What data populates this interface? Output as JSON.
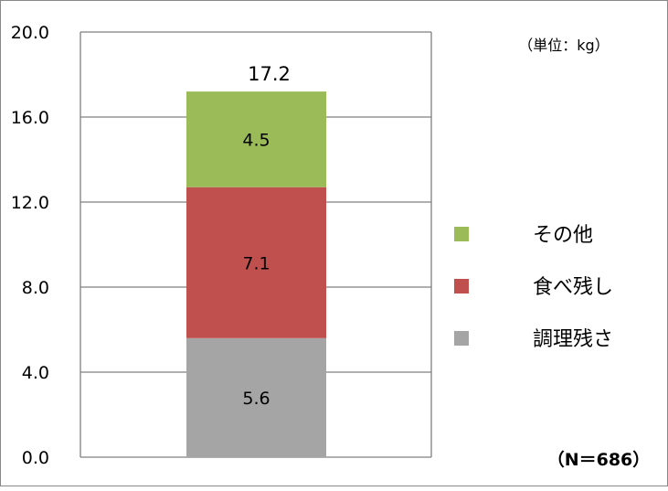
{
  "chart_data": {
    "type": "bar",
    "stacked": true,
    "categories": [
      ""
    ],
    "series": [
      {
        "name": "調理残さ",
        "values": [
          5.6
        ],
        "color": "#A5A5A5"
      },
      {
        "name": "食べ残し",
        "values": [
          7.1
        ],
        "color": "#C0504D"
      },
      {
        "name": "その他",
        "values": [
          4.5
        ],
        "color": "#9BBB59"
      }
    ],
    "total": "17.2",
    "value_labels": [
      "5.6",
      "7.1",
      "4.5"
    ],
    "ylim": [
      0,
      20
    ],
    "yticks": [
      "0.0",
      "4.0",
      "8.0",
      "12.0",
      "16.0",
      "20.0"
    ],
    "ytick_values": [
      0,
      4,
      8,
      12,
      16,
      20
    ],
    "unit_label": "（単位：kg）",
    "note": "（N＝686）",
    "grid": true,
    "legend_position": "right",
    "legend_order": [
      "その他",
      "食べ残し",
      "調理残さ"
    ]
  }
}
